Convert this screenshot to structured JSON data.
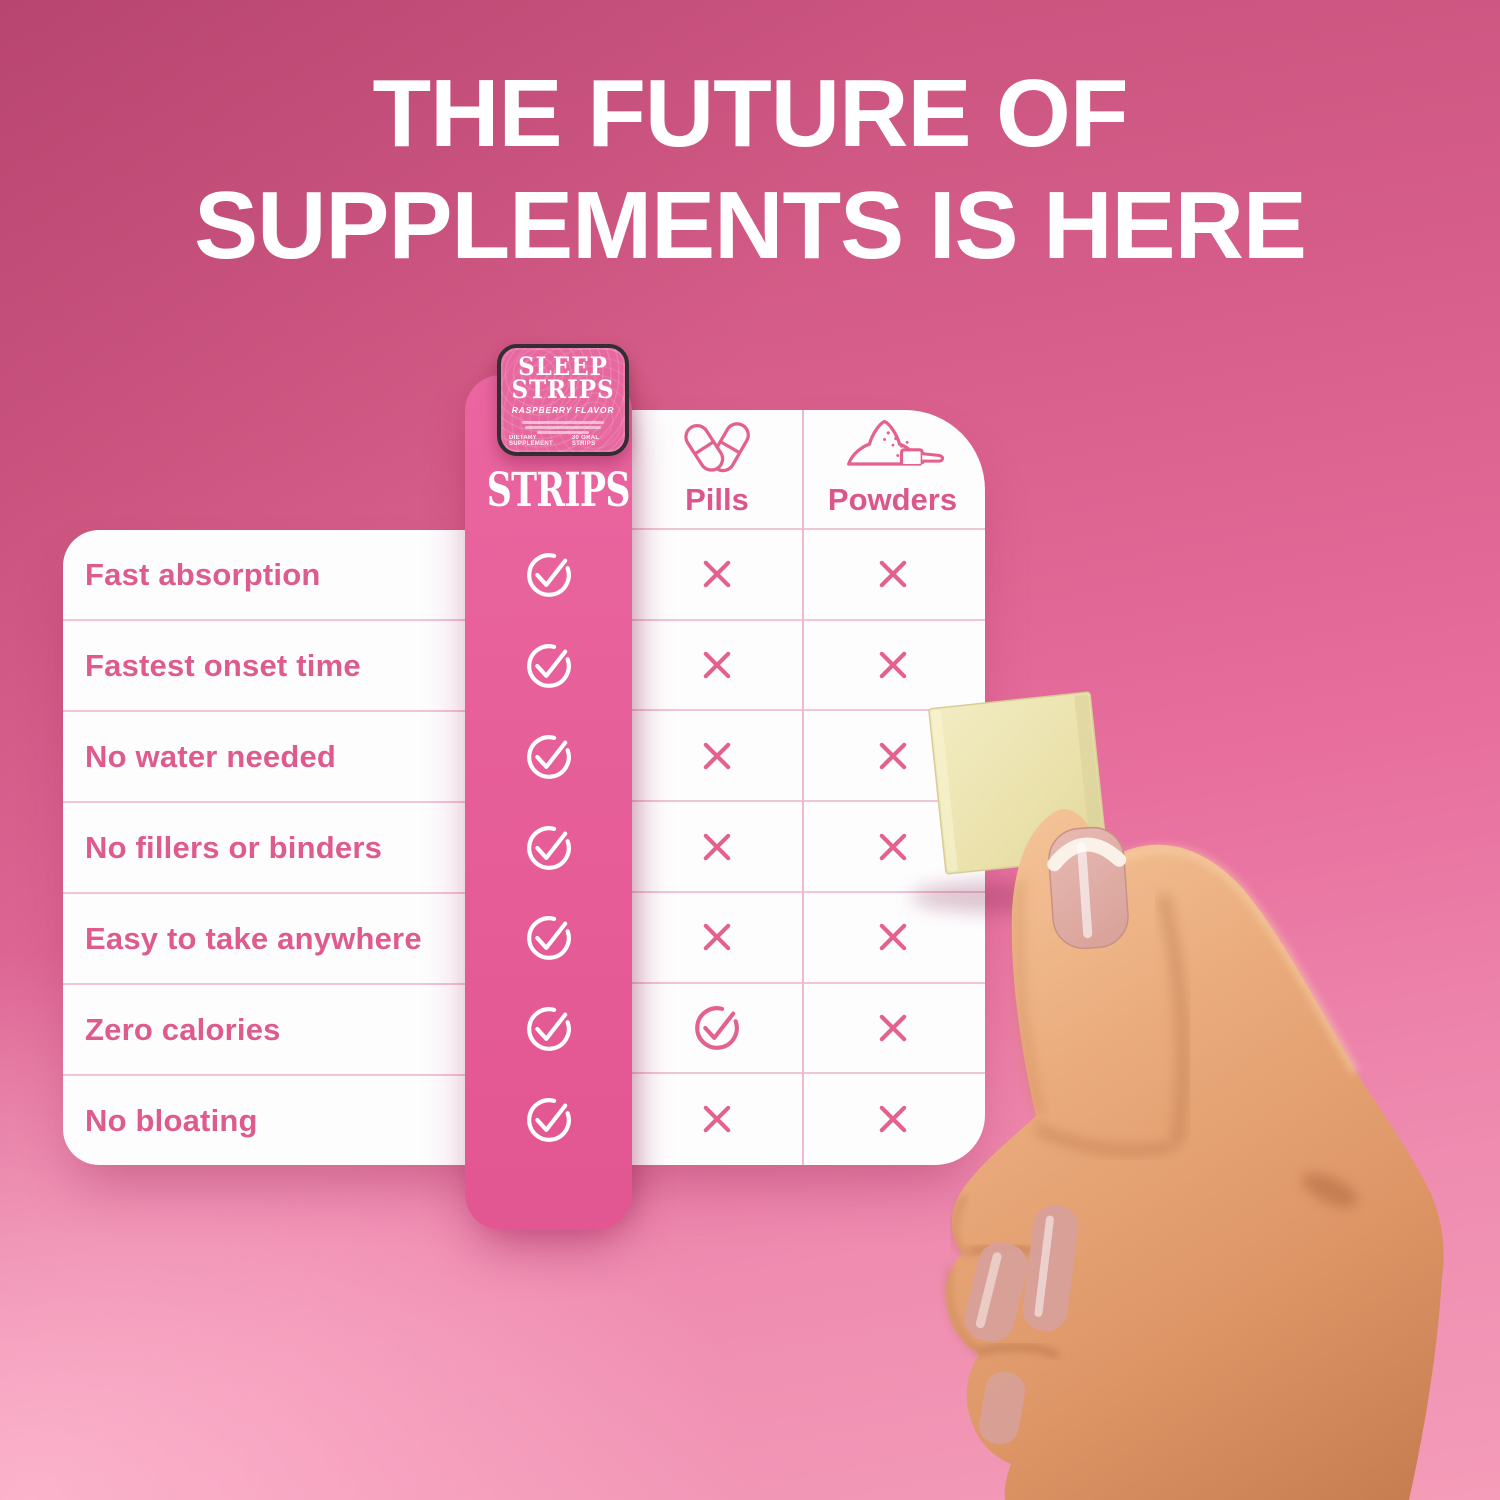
{
  "headline": {
    "line1": "THE FUTURE OF",
    "line2": "SUPPLEMENTS IS HERE"
  },
  "tin": {
    "title_line1": "SLEEP",
    "title_line2": "STRIPS",
    "flavor": "RASPBERRY FLAVOR",
    "footer_left": "DIETARY SUPPLEMENT",
    "footer_right": "30 ORAL STRIPS"
  },
  "strips_column": {
    "wordmark": "STRIPS"
  },
  "comparison": {
    "columns": [
      {
        "id": "strips",
        "label": "STRIPS",
        "icon": "sleep-strips-tin"
      },
      {
        "id": "pills",
        "label": "Pills",
        "icon": "pills-icon"
      },
      {
        "id": "powders",
        "label": "Powders",
        "icon": "powder-scoop-icon"
      }
    ],
    "rows": [
      {
        "label": "Fast absorption",
        "cells": [
          "check",
          "x",
          "x"
        ]
      },
      {
        "label": "Fastest onset time",
        "cells": [
          "check",
          "x",
          "x"
        ]
      },
      {
        "label": "No water needed",
        "cells": [
          "check",
          "x",
          "x"
        ]
      },
      {
        "label": "No fillers or binders",
        "cells": [
          "check",
          "x",
          "x"
        ]
      },
      {
        "label": "Easy to take anywhere",
        "cells": [
          "check",
          "x",
          "x"
        ]
      },
      {
        "label": "Zero calories",
        "cells": [
          "check",
          "check",
          "x"
        ]
      },
      {
        "label": "No bloating",
        "cells": [
          "check",
          "x",
          "x"
        ]
      }
    ]
  },
  "colors": {
    "accent_pink": "#e4618f",
    "column_pink": "#e65d97",
    "divider_pink": "#f3c3d7",
    "bg_top": "#c5507b",
    "bg_bottom": "#f49cb9",
    "headline_white": "#ffffff",
    "strip_color": "#eee6b4"
  },
  "chart_data": {
    "type": "table",
    "title": "THE FUTURE OF SUPPLEMENTS IS HERE",
    "columns": [
      "STRIPS",
      "Pills",
      "Powders"
    ],
    "row_headers": [
      "Fast absorption",
      "Fastest onset time",
      "No water needed",
      "No fillers or binders",
      "Easy to take anywhere",
      "Zero calories",
      "No bloating"
    ],
    "cells": [
      [
        "yes",
        "no",
        "no"
      ],
      [
        "yes",
        "no",
        "no"
      ],
      [
        "yes",
        "no",
        "no"
      ],
      [
        "yes",
        "no",
        "no"
      ],
      [
        "yes",
        "no",
        "no"
      ],
      [
        "yes",
        "yes",
        "no"
      ],
      [
        "yes",
        "no",
        "no"
      ]
    ],
    "legend": {
      "yes": "check-circle-icon",
      "no": "x-icon"
    }
  }
}
